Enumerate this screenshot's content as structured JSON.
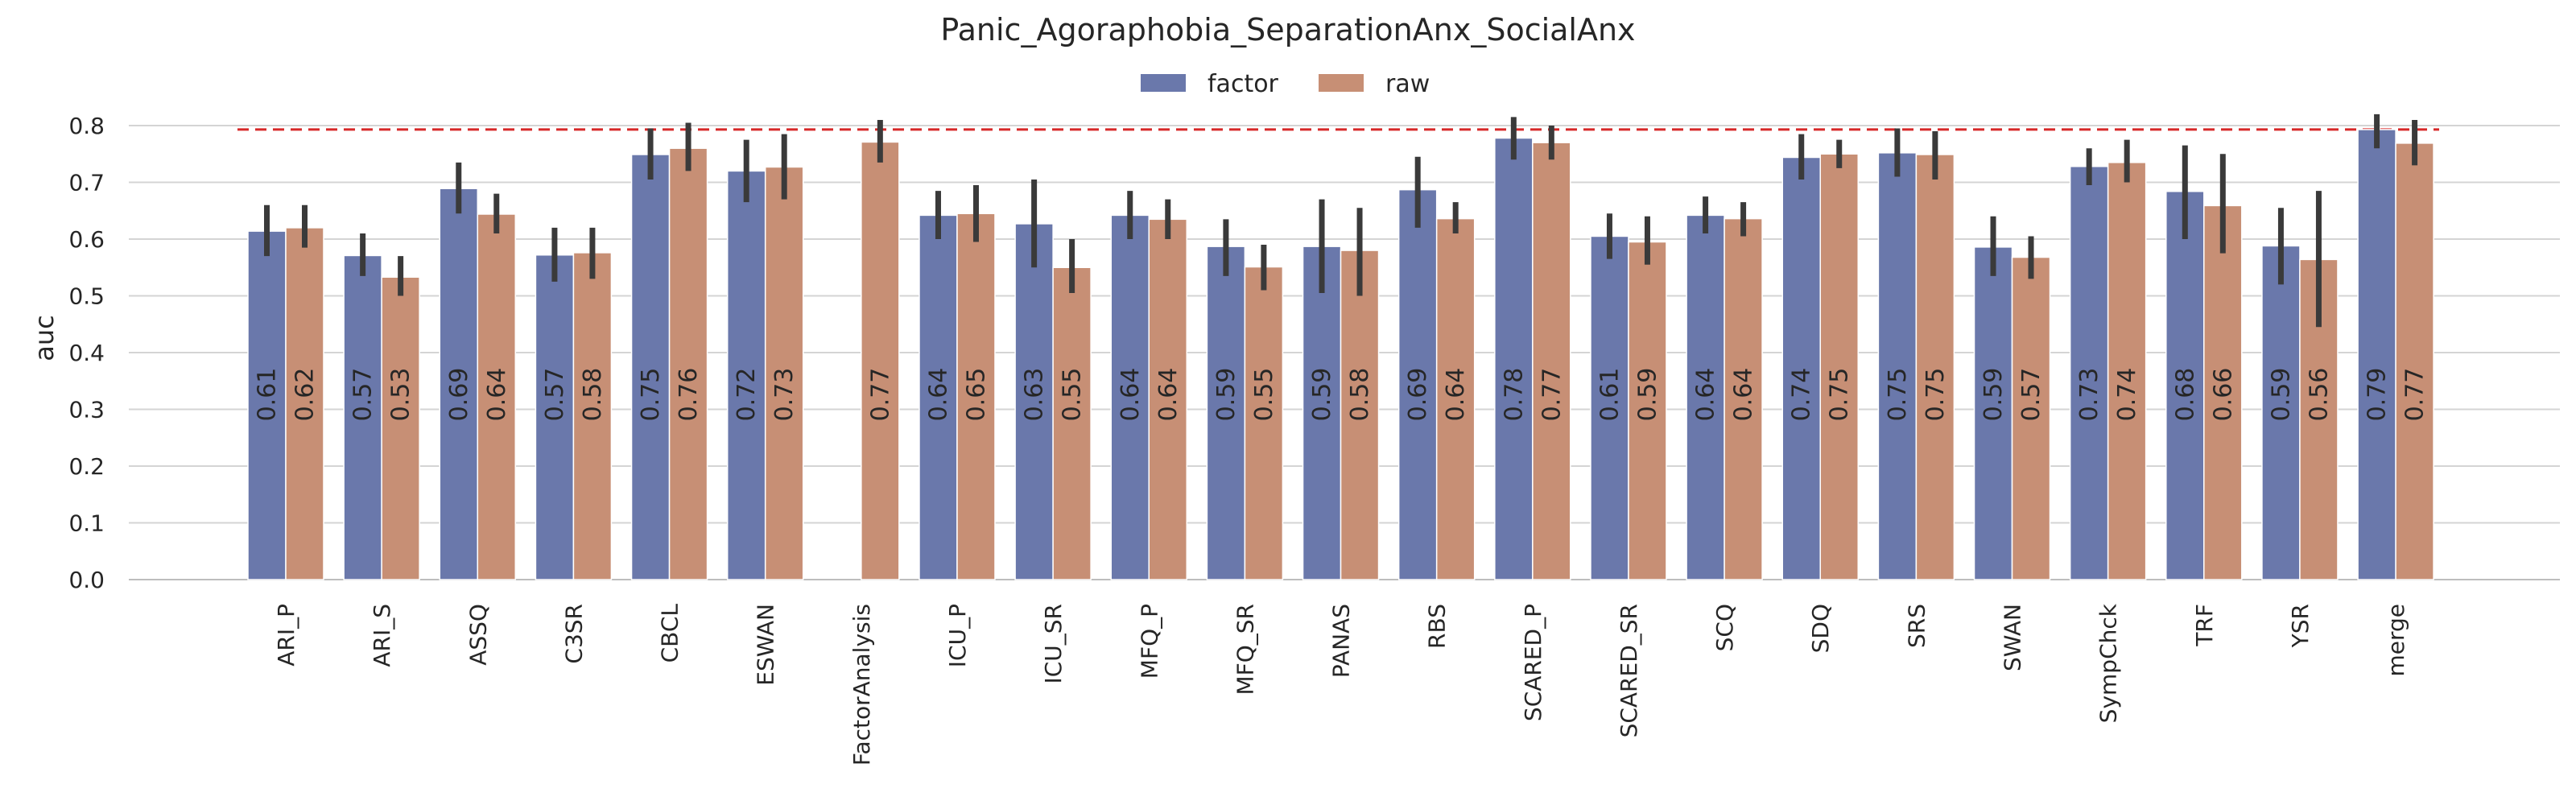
{
  "chart_data": {
    "type": "bar",
    "title": "Panic_Agoraphobia_SeparationAnx_SocialAnx",
    "xlabel": "",
    "ylabel": "auc",
    "ylim": [
      0,
      0.8
    ],
    "yticks": [
      "0.0",
      "0.1",
      "0.2",
      "0.3",
      "0.4",
      "0.5",
      "0.6",
      "0.7",
      "0.8"
    ],
    "grid": "horizontal",
    "legend_position": "top-center",
    "reference_line": {
      "value": 0.793,
      "color": "#d62728",
      "style": "dashed"
    },
    "categories": [
      "ARI_P",
      "ARI_S",
      "ASSQ",
      "C3SR",
      "CBCL",
      "ESWAN",
      "FactorAnalysis",
      "ICU_P",
      "ICU_SR",
      "MFQ_P",
      "MFQ_SR",
      "PANAS",
      "RBS",
      "SCARED_P",
      "SCARED_SR",
      "SCQ",
      "SDQ",
      "SRS",
      "SWAN",
      "SympChck",
      "TRF",
      "YSR",
      "merge"
    ],
    "series": [
      {
        "name": "factor",
        "color": "#6a78ab",
        "values": [
          0.614,
          0.571,
          0.689,
          0.572,
          0.749,
          0.72,
          null,
          0.642,
          0.627,
          0.642,
          0.587,
          0.587,
          0.687,
          0.778,
          0.605,
          0.642,
          0.744,
          0.752,
          0.586,
          0.728,
          0.684,
          0.588,
          0.793
        ],
        "labels": [
          "0.61",
          "0.57",
          "0.69",
          "0.57",
          "0.75",
          "0.72",
          "",
          "0.64",
          "0.63",
          "0.64",
          "0.59",
          "0.59",
          "0.69",
          "0.78",
          "0.61",
          "0.64",
          "0.74",
          "0.75",
          "0.59",
          "0.73",
          "0.68",
          "0.59",
          "0.79"
        ],
        "err_low": [
          0.57,
          0.535,
          0.645,
          0.525,
          0.705,
          0.665,
          null,
          0.6,
          0.55,
          0.6,
          0.535,
          0.505,
          0.62,
          0.74,
          0.565,
          0.61,
          0.705,
          0.71,
          0.535,
          0.695,
          0.6,
          0.52,
          0.76
        ],
        "err_high": [
          0.66,
          0.61,
          0.735,
          0.62,
          0.795,
          0.775,
          null,
          0.685,
          0.705,
          0.685,
          0.635,
          0.67,
          0.745,
          0.815,
          0.645,
          0.675,
          0.785,
          0.795,
          0.64,
          0.76,
          0.765,
          0.655,
          0.82
        ]
      },
      {
        "name": "raw",
        "color": "#c78f75",
        "values": [
          0.62,
          0.533,
          0.644,
          0.576,
          0.76,
          0.727,
          0.771,
          0.645,
          0.55,
          0.635,
          0.551,
          0.58,
          0.636,
          0.77,
          0.595,
          0.636,
          0.75,
          0.749,
          0.568,
          0.735,
          0.659,
          0.564,
          0.769
        ],
        "labels": [
          "0.62",
          "0.53",
          "0.64",
          "0.58",
          "0.76",
          "0.73",
          "0.77",
          "0.65",
          "0.55",
          "0.64",
          "0.55",
          "0.58",
          "0.64",
          "0.77",
          "0.59",
          "0.64",
          "0.75",
          "0.75",
          "0.57",
          "0.74",
          "0.66",
          "0.56",
          "0.77"
        ],
        "err_low": [
          0.585,
          0.5,
          0.61,
          0.53,
          0.72,
          0.67,
          0.735,
          0.595,
          0.505,
          0.6,
          0.51,
          0.5,
          0.61,
          0.74,
          0.555,
          0.605,
          0.725,
          0.705,
          0.53,
          0.7,
          0.575,
          0.445,
          0.73
        ],
        "err_high": [
          0.66,
          0.57,
          0.68,
          0.62,
          0.805,
          0.785,
          0.81,
          0.695,
          0.6,
          0.67,
          0.59,
          0.655,
          0.665,
          0.8,
          0.64,
          0.665,
          0.775,
          0.79,
          0.605,
          0.775,
          0.75,
          0.685,
          0.81
        ]
      }
    ]
  }
}
